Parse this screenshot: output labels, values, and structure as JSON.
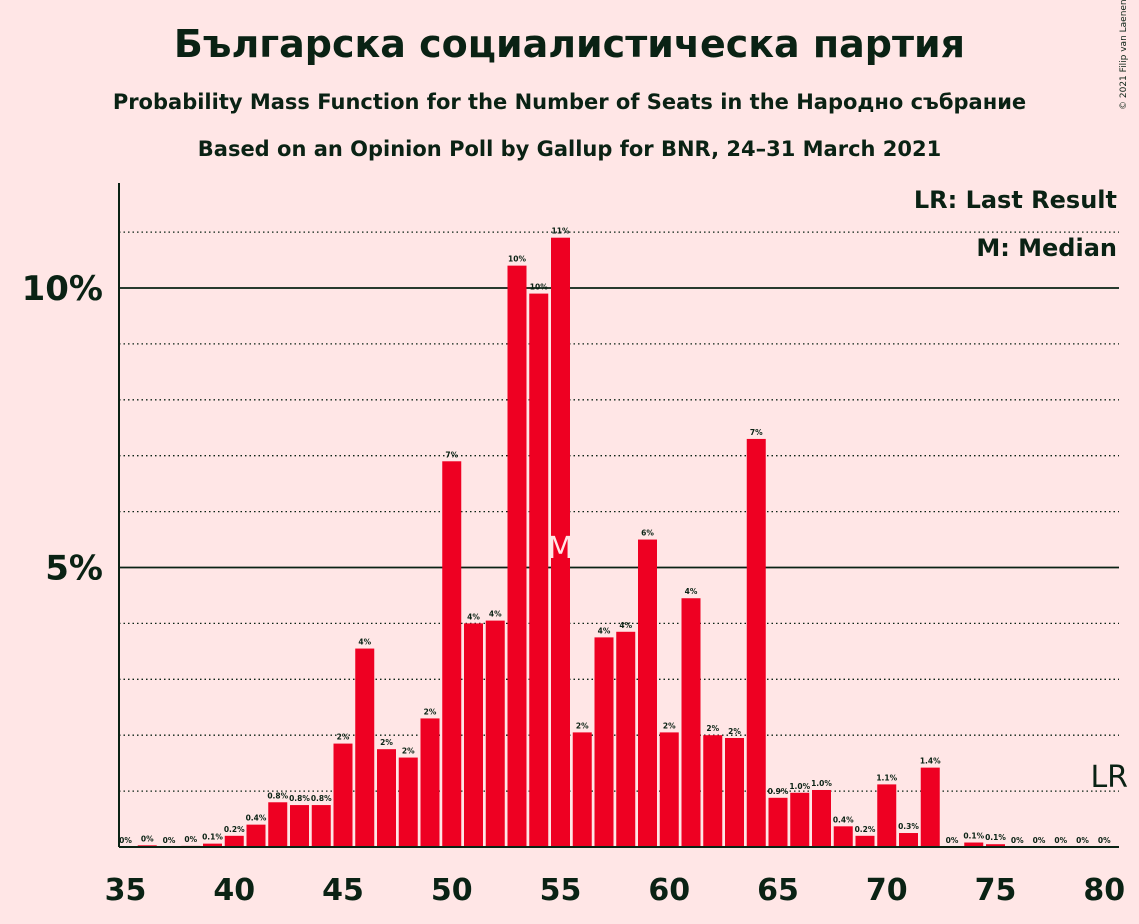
{
  "copyright": "© 2021 Filip van Laenen",
  "chart_data": {
    "type": "bar",
    "title": "Българска социалистическа партия",
    "subtitle": "Probability Mass Function for the Number of Seats in the Народно събрание",
    "subtitle2": "Based on an Opinion Poll by Gallup for BNR, 24–31 March 2021",
    "x": [
      35,
      36,
      37,
      38,
      39,
      40,
      41,
      42,
      43,
      44,
      45,
      46,
      47,
      48,
      49,
      50,
      51,
      52,
      53,
      54,
      55,
      56,
      57,
      58,
      59,
      60,
      61,
      62,
      63,
      64,
      65,
      66,
      67,
      68,
      69,
      70,
      71,
      72,
      73,
      74,
      75,
      76,
      77,
      78,
      79,
      80
    ],
    "values": [
      0,
      0.03,
      0,
      0.02,
      0.06,
      0.2,
      0.4,
      0.8,
      0.75,
      0.75,
      1.85,
      3.55,
      1.75,
      1.6,
      2.3,
      6.9,
      4.0,
      4.05,
      10.4,
      9.9,
      10.9,
      2.05,
      3.75,
      3.85,
      5.5,
      2.05,
      4.45,
      2.0,
      1.95,
      7.3,
      0.88,
      0.97,
      1.02,
      0.37,
      0.2,
      1.12,
      0.25,
      1.42,
      0,
      0.08,
      0.05,
      0,
      0,
      0,
      0,
      0
    ],
    "value_labels": [
      "0%",
      "0%",
      "0%",
      "0%",
      "0.1%",
      "0.2%",
      "0.4%",
      "0.8%",
      "0.8%",
      "0.8%",
      "2%",
      "4%",
      "2%",
      "2%",
      "2%",
      "7%",
      "4%",
      "4%",
      "10%",
      "10%",
      "11%",
      "2%",
      "4%",
      "4%",
      "6%",
      "2%",
      "4%",
      "2%",
      "2%",
      "7%",
      "0.9%",
      "1.0%",
      "1.0%",
      "0.4%",
      "0.2%",
      "1.1%",
      "0.3%",
      "1.4%",
      "0%",
      "0.1%",
      "0.1%",
      "0%",
      "0%",
      "0%",
      "0%",
      "0%"
    ],
    "xticks": [
      35,
      40,
      45,
      50,
      55,
      60,
      65,
      70,
      75,
      80
    ],
    "yticks": [
      {
        "value": 5,
        "label": "5%"
      },
      {
        "value": 10,
        "label": "10%"
      }
    ],
    "minor_gridlines": [
      1,
      2,
      3,
      4,
      6,
      7,
      8,
      9,
      11
    ],
    "ylim": [
      0,
      12
    ],
    "xlim": [
      34.5,
      80.5
    ],
    "median": 55,
    "median_label": "M",
    "last_result": 80,
    "last_result_label": "LR",
    "legend": [
      "LR: Last Result",
      "M: Median"
    ],
    "legend_position": "top-right",
    "bar_color": "#ee0022",
    "median_color": "#ffe6e6",
    "text_color": "#0a2214"
  }
}
